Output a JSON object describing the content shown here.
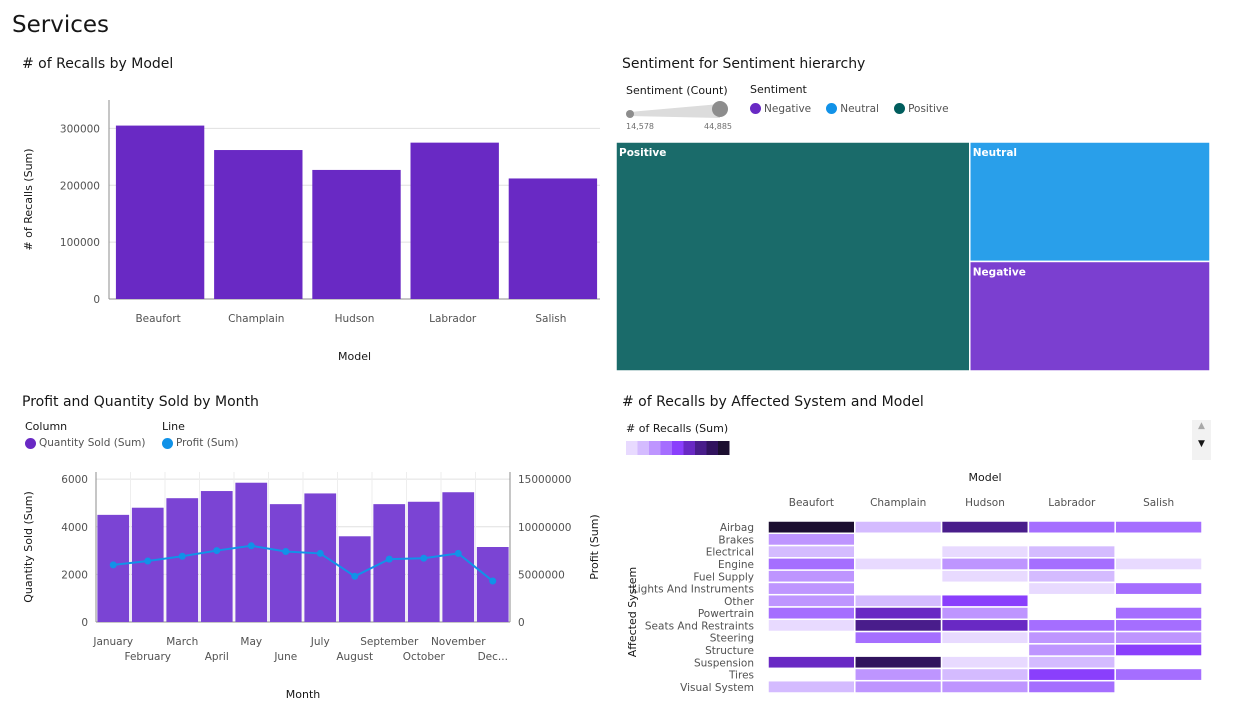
{
  "page": {
    "title": "Services"
  },
  "colors": {
    "purple": "#6929c4",
    "teal": "#1a6b6a",
    "blue": "#299fea",
    "neg": "#7b3fd0",
    "line": "#1192e8"
  },
  "chart_data": [
    {
      "id": "recalls-by-model",
      "type": "bar",
      "title": "# of Recalls by Model",
      "xlabel": "Model",
      "ylabel": "# of Recalls (Sum)",
      "categories": [
        "Beaufort",
        "Champlain",
        "Hudson",
        "Labrador",
        "Salish"
      ],
      "values": [
        305000,
        262000,
        227000,
        275000,
        212000
      ],
      "ylim": [
        0,
        350000
      ],
      "yticks": [
        "0",
        "100000",
        "200000",
        "300000"
      ],
      "ytick_values": [
        0,
        100000,
        200000,
        300000
      ]
    },
    {
      "id": "sentiment-treemap",
      "type": "treemap",
      "title": "Sentiment for Sentiment hierarchy",
      "size_legend": {
        "title": "Sentiment (Count)",
        "min_label": "14,578",
        "max_label": "44,885"
      },
      "color_legend_title": "Sentiment",
      "legend": [
        "Negative",
        "Neutral",
        "Positive"
      ],
      "legend_colors": [
        "#6929c4",
        "#1192e8",
        "#005d5d"
      ],
      "nodes": [
        {
          "name": "Positive",
          "value": 44885
        },
        {
          "name": "Neutral",
          "value": 15900
        },
        {
          "name": "Negative",
          "value": 14578
        }
      ]
    },
    {
      "id": "profit-quantity",
      "type": "bar",
      "title": "Profit and Quantity Sold by Month",
      "xlabel": "Month",
      "ylabel": "Quantity Sold (Sum)",
      "y2label": "Profit (Sum)",
      "column_legend_title": "Column",
      "line_legend_title": "Line",
      "series": [
        {
          "name": "Quantity Sold (Sum)",
          "kind": "column",
          "values": [
            4500,
            4800,
            5200,
            5500,
            5850,
            4950,
            5400,
            3600,
            4950,
            5050,
            5450,
            3150
          ]
        },
        {
          "name": "Profit (Sum)",
          "kind": "line",
          "values": [
            6000000,
            6400000,
            6900000,
            7500000,
            8000000,
            7400000,
            7200000,
            4800000,
            6600000,
            6700000,
            7200000,
            4300000
          ]
        }
      ],
      "categories": [
        "January",
        "February",
        "March",
        "April",
        "May",
        "June",
        "July",
        "August",
        "September",
        "October",
        "November",
        "Dec..."
      ],
      "ylim": [
        0,
        6300
      ],
      "yticks": [
        "0",
        "2000",
        "4000",
        "6000"
      ],
      "ytick_values": [
        0,
        2000,
        4000,
        6000
      ],
      "y2lim": [
        0,
        15750000
      ],
      "y2ticks": [
        "0",
        "5000000",
        "10000000",
        "15000000"
      ],
      "y2tick_values": [
        0,
        5000000,
        10000000,
        15000000
      ]
    },
    {
      "id": "recalls-heatmap",
      "type": "heatmap",
      "title": "# of Recalls by Affected System and Model",
      "xlabel": "Model",
      "ylabel": "Affected System",
      "color_legend_title": "# of Recalls (Sum)",
      "palette": [
        "#e8daff",
        "#d4bbff",
        "#be95ff",
        "#a56eff",
        "#8a3ffc",
        "#6929c4",
        "#491d8b",
        "#31135e",
        "#1c0f30"
      ],
      "columns": [
        "Beaufort",
        "Champlain",
        "Hudson",
        "Labrador",
        "Salish"
      ],
      "rows": [
        "Airbag",
        "Brakes",
        "Electrical",
        "Engine",
        "Fuel Supply",
        "Lights And Instruments",
        "Other",
        "Powertrain",
        "Seats And Restraints",
        "Steering",
        "Structure",
        "Suspension",
        "Tires",
        "Visual System"
      ],
      "values": [
        [
          9,
          2,
          7,
          4,
          4
        ],
        [
          3,
          0,
          0,
          0,
          0
        ],
        [
          2,
          0,
          1,
          2,
          0
        ],
        [
          4,
          1,
          3,
          4,
          1
        ],
        [
          3,
          0,
          1,
          2,
          0
        ],
        [
          3,
          0,
          0,
          1,
          4
        ],
        [
          3,
          2,
          5,
          0,
          0
        ],
        [
          4,
          6,
          3,
          0,
          4
        ],
        [
          1,
          7,
          6,
          4,
          4
        ],
        [
          0,
          4,
          1,
          3,
          3
        ],
        [
          0,
          0,
          0,
          3,
          5
        ],
        [
          6,
          8,
          1,
          2,
          0
        ],
        [
          0,
          3,
          2,
          5,
          4
        ],
        [
          2,
          3,
          3,
          4,
          0
        ]
      ]
    }
  ]
}
